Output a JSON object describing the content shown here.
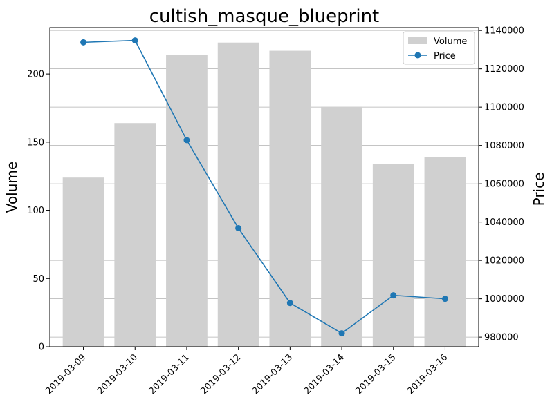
{
  "chart_data": {
    "type": "bar+line",
    "title": "cultish_masque_blueprint",
    "categories": [
      "2019-03-09",
      "2019-03-10",
      "2019-03-11",
      "2019-03-12",
      "2019-03-13",
      "2019-03-14",
      "2019-03-15",
      "2019-03-16"
    ],
    "series": [
      {
        "name": "Volume",
        "type": "bar",
        "axis": "left",
        "color": "#d0d0d0",
        "values": [
          124,
          164,
          214,
          223,
          217,
          176,
          134,
          139
        ]
      },
      {
        "name": "Price",
        "type": "line",
        "axis": "right",
        "color": "#1f77b4",
        "values": [
          1133800,
          1134800,
          1082800,
          1036800,
          997800,
          982000,
          1001800,
          1000000
        ]
      }
    ],
    "ylabel_left": "Volume",
    "ylabel_right": "Price",
    "ylim_left": [
      0,
      234
    ],
    "ylim_right": [
      975000,
      1141500
    ],
    "yticks_left": [
      0,
      50,
      100,
      150,
      200
    ],
    "yticks_right": [
      980000,
      1000000,
      1020000,
      1040000,
      1060000,
      1080000,
      1100000,
      1120000,
      1140000
    ],
    "grid": "horizontal (right axis)",
    "legend_position": "top-right"
  }
}
